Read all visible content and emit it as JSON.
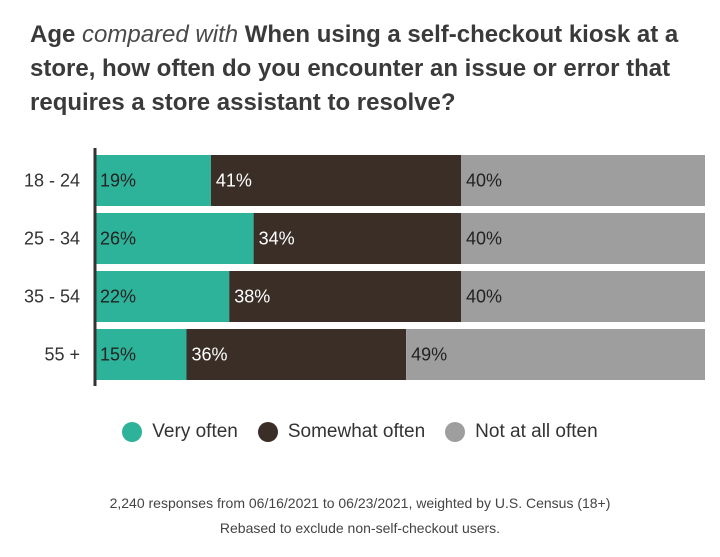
{
  "title": {
    "part1": "Age",
    "part2": "compared with",
    "part3": "When using a self-checkout kiosk at a store, how often do you encounter an issue or error that requires a store assistant to resolve?"
  },
  "chart_data": {
    "type": "bar",
    "stacked": true,
    "orientation": "horizontal",
    "categories": [
      "18 - 24",
      "25 - 34",
      "35 - 54",
      "55 +"
    ],
    "series": [
      {
        "name": "Very often",
        "color": "#2db39a",
        "values": [
          19,
          26,
          22,
          15
        ],
        "labels": [
          "19%",
          "26%",
          "22%",
          "15%"
        ]
      },
      {
        "name": "Somewhat often",
        "color": "#3a2e26",
        "values": [
          41,
          34,
          38,
          36
        ],
        "labels": [
          "41%",
          "34%",
          "38%",
          "36%"
        ]
      },
      {
        "name": "Not at all often",
        "color": "#9e9e9e",
        "values": [
          40,
          40,
          40,
          49
        ],
        "labels": [
          "40%",
          "40%",
          "40%",
          "49%"
        ]
      }
    ],
    "xlim": [
      0,
      100
    ],
    "legend_position": "bottom"
  },
  "legend": {
    "items": [
      {
        "label": "Very often",
        "color": "#2db39a"
      },
      {
        "label": "Somewhat often",
        "color": "#3a2e26"
      },
      {
        "label": "Not at all often",
        "color": "#9e9e9e"
      }
    ]
  },
  "footer": {
    "line1": "2,240 responses from 06/16/2021 to 06/23/2021, weighted by U.S. Census (18+)",
    "line2": "Rebased to exclude non-self-checkout users."
  }
}
